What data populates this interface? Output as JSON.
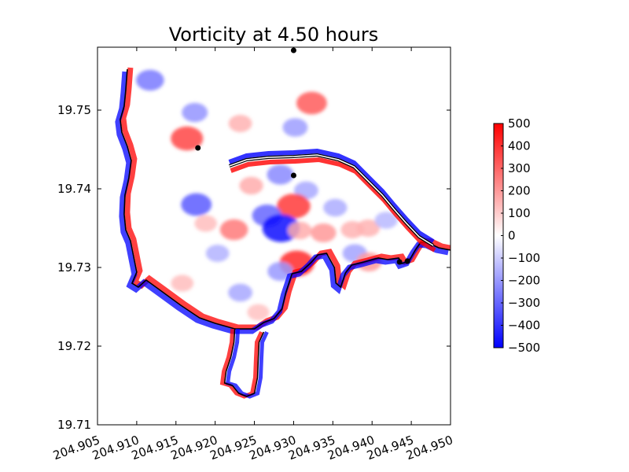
{
  "chart_data": {
    "type": "heatmap",
    "title": "Vorticity at 4.50 hours",
    "xlabel": "",
    "ylabel": "",
    "xlim": [
      204.905,
      204.95
    ],
    "ylim": [
      19.71,
      19.758
    ],
    "x_ticks": [
      204.905,
      204.91,
      204.915,
      204.92,
      204.925,
      204.93,
      204.935,
      204.94,
      204.945,
      204.95
    ],
    "x_tick_labels": [
      "204.905",
      "204.910",
      "204.915",
      "204.920",
      "204.925",
      "204.930",
      "204.935",
      "204.940",
      "204.945",
      "204.950"
    ],
    "y_ticks": [
      19.71,
      19.72,
      19.73,
      19.74,
      19.75
    ],
    "y_tick_labels": [
      "19.71",
      "19.72",
      "19.73",
      "19.74",
      "19.75"
    ],
    "grid": false,
    "colormap": "bwr",
    "colorbar": {
      "range": [
        -500,
        500
      ],
      "ticks": [
        500,
        400,
        300,
        200,
        100,
        0,
        -100,
        -200,
        -300,
        -400,
        -500
      ],
      "tick_labels": [
        "500",
        "400",
        "300",
        "200",
        "100",
        "0",
        "−100",
        "−200",
        "−300",
        "−400",
        "−500"
      ],
      "colors": {
        "negative": "#0000ff",
        "zero": "#ffffff",
        "positive": "#ff0000"
      }
    },
    "vortices": [
      {
        "x": 204.9323,
        "y": 19.7509,
        "value": 320
      },
      {
        "x": 204.9164,
        "y": 19.7464,
        "value": 360
      },
      {
        "x": 204.9174,
        "y": 19.7497,
        "value": -210
      },
      {
        "x": 204.9232,
        "y": 19.7483,
        "value": 150
      },
      {
        "x": 204.9302,
        "y": 19.7478,
        "value": -190
      },
      {
        "x": 204.9316,
        "y": 19.7398,
        "value": -170
      },
      {
        "x": 204.9283,
        "y": 19.7418,
        "value": -230
      },
      {
        "x": 204.9246,
        "y": 19.7404,
        "value": 160
      },
      {
        "x": 204.93,
        "y": 19.7378,
        "value": 390
      },
      {
        "x": 204.9176,
        "y": 19.738,
        "value": -320
      },
      {
        "x": 204.9188,
        "y": 19.7356,
        "value": 130
      },
      {
        "x": 204.9224,
        "y": 19.7348,
        "value": 260
      },
      {
        "x": 204.9266,
        "y": 19.7366,
        "value": -300
      },
      {
        "x": 204.9284,
        "y": 19.735,
        "value": -480
      },
      {
        "x": 204.9308,
        "y": 19.7347,
        "value": 160
      },
      {
        "x": 204.9338,
        "y": 19.7344,
        "value": 200
      },
      {
        "x": 204.9353,
        "y": 19.7376,
        "value": -160
      },
      {
        "x": 204.9375,
        "y": 19.7348,
        "value": 150
      },
      {
        "x": 204.9395,
        "y": 19.735,
        "value": 150
      },
      {
        "x": 204.9418,
        "y": 19.736,
        "value": -140
      },
      {
        "x": 204.9203,
        "y": 19.7318,
        "value": -150
      },
      {
        "x": 204.9304,
        "y": 19.7305,
        "value": 420
      },
      {
        "x": 204.9283,
        "y": 19.7295,
        "value": -200
      },
      {
        "x": 204.9378,
        "y": 19.7318,
        "value": -180
      },
      {
        "x": 204.9396,
        "y": 19.7307,
        "value": 200
      },
      {
        "x": 204.9232,
        "y": 19.7268,
        "value": -170
      },
      {
        "x": 204.9158,
        "y": 19.728,
        "value": 130
      },
      {
        "x": 204.9255,
        "y": 19.7243,
        "value": 120
      },
      {
        "x": 204.9117,
        "y": 19.7538,
        "value": -260
      }
    ],
    "points": [
      {
        "x": 204.93,
        "y": 19.7576
      },
      {
        "x": 204.9178,
        "y": 19.7452
      },
      {
        "x": 204.93,
        "y": 19.7417
      },
      {
        "x": 204.9435,
        "y": 19.7307
      },
      {
        "x": 204.9445,
        "y": 19.7308
      }
    ],
    "coastline": [
      [
        204.9088,
        19.7552
      ],
      [
        204.9086,
        19.7525
      ],
      [
        204.9084,
        19.7505
      ],
      [
        204.9079,
        19.7488
      ],
      [
        204.9081,
        19.7472
      ],
      [
        204.9088,
        19.7454
      ],
      [
        204.9093,
        19.7436
      ],
      [
        204.909,
        19.7414
      ],
      [
        204.9085,
        19.7392
      ],
      [
        204.9084,
        19.7368
      ],
      [
        204.9086,
        19.7348
      ],
      [
        204.9092,
        19.7334
      ],
      [
        204.9096,
        19.7314
      ],
      [
        204.91,
        19.7294
      ],
      [
        204.9094,
        19.728
      ],
      [
        204.9102,
        19.7275
      ],
      [
        204.9112,
        19.7284
      ],
      [
        204.913,
        19.7271
      ],
      [
        204.9156,
        19.7252
      ],
      [
        204.918,
        19.7236
      ],
      [
        204.92,
        19.7229
      ],
      [
        204.9225,
        19.7222
      ],
      [
        204.925,
        19.7222
      ],
      [
        204.9262,
        19.723
      ],
      [
        204.9275,
        19.7235
      ],
      [
        204.9285,
        19.7247
      ],
      [
        204.929,
        19.7268
      ],
      [
        204.9298,
        19.7292
      ],
      [
        204.931,
        19.7295
      ],
      [
        204.9322,
        19.7306
      ],
      [
        204.9331,
        19.7316
      ],
      [
        204.9342,
        19.7318
      ],
      [
        204.9352,
        19.73
      ],
      [
        204.9354,
        19.728
      ],
      [
        204.936,
        19.7275
      ],
      [
        204.9366,
        19.7293
      ],
      [
        204.9374,
        19.7303
      ],
      [
        204.939,
        19.7307
      ],
      [
        204.9408,
        19.7312
      ],
      [
        204.942,
        19.731
      ],
      [
        204.9434,
        19.7312
      ],
      [
        204.9438,
        19.7305
      ],
      [
        204.9447,
        19.7308
      ],
      [
        204.9455,
        19.7322
      ],
      [
        204.9462,
        19.7332
      ],
      [
        204.9472,
        19.7331
      ],
      [
        204.9485,
        19.7325
      ],
      [
        204.95,
        19.7322
      ]
    ],
    "breakwater": [
      [
        204.9218,
        19.7429
      ],
      [
        204.924,
        19.7437
      ],
      [
        204.9268,
        19.744
      ],
      [
        204.93,
        19.7441
      ],
      [
        204.933,
        19.7443
      ],
      [
        204.9357,
        19.7437
      ],
      [
        204.9377,
        19.7428
      ],
      [
        204.9395,
        19.741
      ],
      [
        204.9413,
        19.7392
      ],
      [
        204.9428,
        19.7374
      ],
      [
        204.9443,
        19.7357
      ],
      [
        204.946,
        19.7339
      ],
      [
        204.9478,
        19.7328
      ]
    ],
    "south_inlet": [
      [
        204.9225,
        19.7222
      ],
      [
        204.9224,
        19.7205
      ],
      [
        204.922,
        19.7186
      ],
      [
        204.9214,
        19.7168
      ],
      [
        204.9212,
        19.7153
      ],
      [
        204.9222,
        19.715
      ],
      [
        204.923,
        19.714
      ],
      [
        204.924,
        19.7136
      ],
      [
        204.925,
        19.714
      ],
      [
        204.9254,
        19.716
      ],
      [
        204.9255,
        19.7185
      ],
      [
        204.9256,
        19.7205
      ],
      [
        204.9262,
        19.7218
      ]
    ]
  }
}
